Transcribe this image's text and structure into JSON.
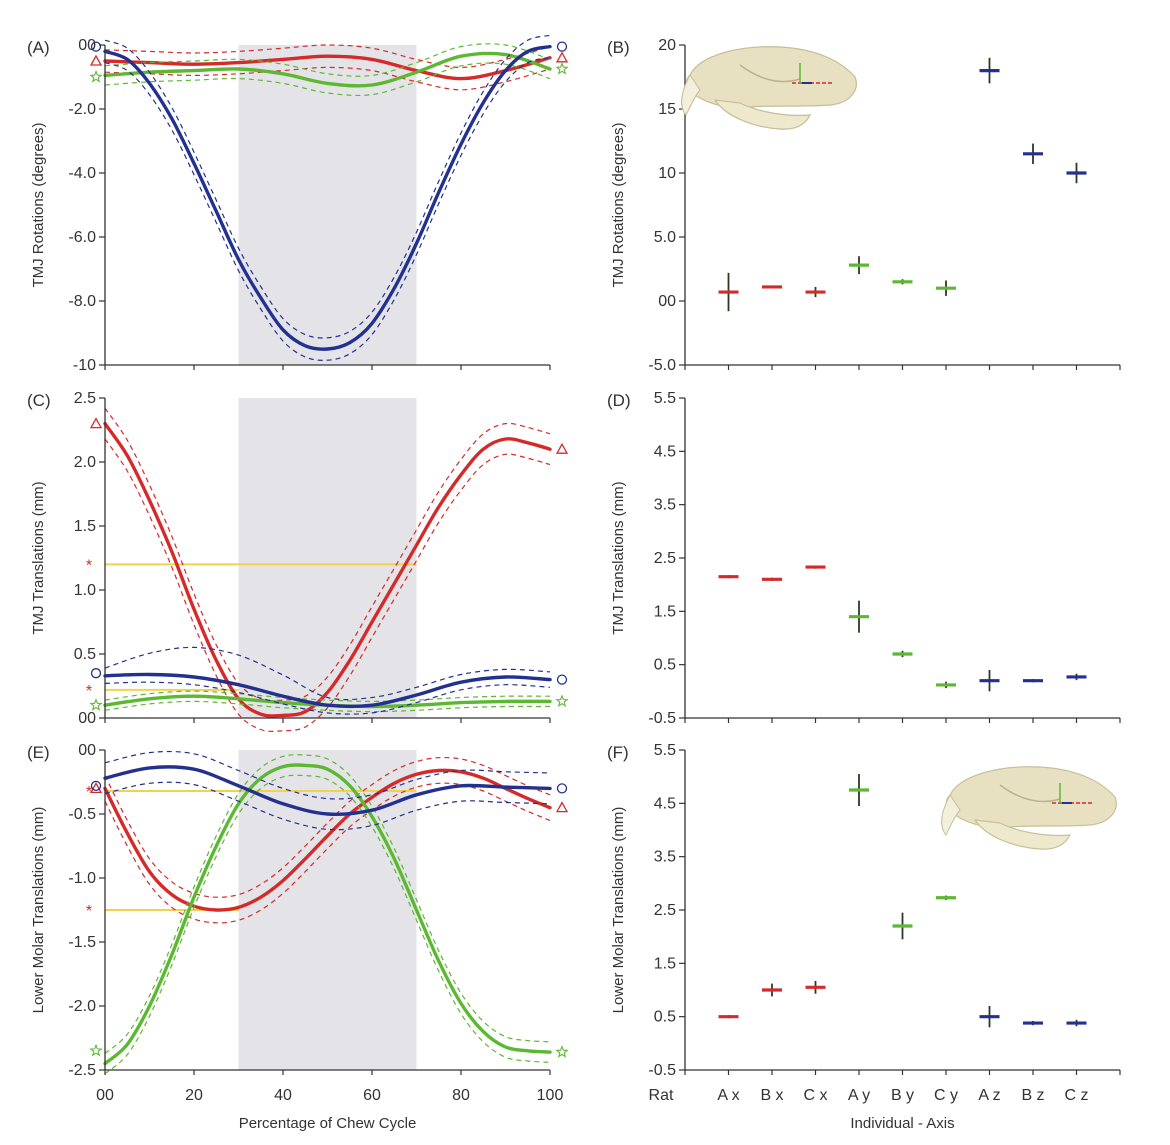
{
  "figure": {
    "bottom_left_xlabel": "Percentage of Chew Cycle",
    "bottom_right_xlabel": "Individual - Axis",
    "bottom_right_first_tick": "Rat",
    "highlight_range": [
      30,
      70
    ]
  },
  "colors": {
    "x": "#d42a2a",
    "y": "#5cb832",
    "z": "#22318f",
    "ref": "#f2d24a",
    "shade": "#e4e4e8"
  },
  "chart_data": [
    {
      "panel": "(A)",
      "type": "line",
      "ylabel": "TMJ Rotations (degrees)",
      "xlim": [
        0,
        100
      ],
      "ylim": [
        -10,
        0
      ],
      "xticks": [
        "00",
        "20",
        "40",
        "60",
        "80",
        "100"
      ],
      "yticks": [
        {
          "v": 0,
          "l": "00"
        },
        {
          "v": -2,
          "l": "-2.0"
        },
        {
          "v": -4,
          "l": "-4.0"
        },
        {
          "v": -6,
          "l": "-6.0"
        },
        {
          "v": -8,
          "l": "-8.0"
        },
        {
          "v": -10,
          "l": "-10"
        }
      ],
      "shade": [
        30,
        70
      ],
      "series": [
        {
          "axis": "x",
          "color": "#d42a2a",
          "marker": "triangle",
          "marker_y": -0.5,
          "x": [
            0,
            10,
            20,
            30,
            40,
            50,
            60,
            70,
            80,
            90,
            100
          ],
          "y": [
            -0.5,
            -0.55,
            -0.6,
            -0.55,
            -0.45,
            -0.35,
            -0.45,
            -0.8,
            -1.05,
            -0.8,
            -0.4
          ],
          "band": 0.35
        },
        {
          "axis": "y",
          "color": "#5cb832",
          "marker": "star",
          "marker_y": -1.0,
          "x": [
            0,
            10,
            20,
            30,
            40,
            50,
            60,
            70,
            80,
            90,
            100
          ],
          "y": [
            -0.95,
            -0.85,
            -0.8,
            -0.75,
            -0.9,
            -1.2,
            -1.25,
            -0.85,
            -0.35,
            -0.3,
            -0.75
          ],
          "band": 0.3
        },
        {
          "axis": "z",
          "color": "#22318f",
          "marker": "circle",
          "marker_y": -0.05,
          "x": [
            0,
            5,
            10,
            15,
            20,
            25,
            30,
            35,
            40,
            45,
            50,
            55,
            60,
            65,
            70,
            75,
            80,
            85,
            90,
            95,
            100
          ],
          "y": [
            -0.2,
            -0.45,
            -1.2,
            -2.3,
            -3.7,
            -5.2,
            -6.7,
            -7.9,
            -8.9,
            -9.4,
            -9.5,
            -9.3,
            -8.7,
            -7.6,
            -6.2,
            -4.6,
            -3.1,
            -1.8,
            -0.8,
            -0.2,
            -0.05
          ],
          "band": 0.35
        }
      ]
    },
    {
      "panel": "(B)",
      "type": "scatter",
      "ylabel": "TMJ Rotations (degrees)",
      "ylim": [
        -5,
        20
      ],
      "yticks": [
        {
          "v": 20,
          "l": "20"
        },
        {
          "v": 15,
          "l": "15"
        },
        {
          "v": 10,
          "l": "10"
        },
        {
          "v": 5,
          "l": "5.0"
        },
        {
          "v": 0,
          "l": "00"
        },
        {
          "v": -5,
          "l": "-5.0"
        }
      ],
      "categories": [
        "A x",
        "B x",
        "C x",
        "A y",
        "B y",
        "C y",
        "A z",
        "B z",
        "C z"
      ],
      "points": [
        {
          "axis": "x",
          "y": 0.7,
          "err": 1.5
        },
        {
          "axis": "x",
          "y": 1.1,
          "err": 0.1
        },
        {
          "axis": "x",
          "y": 0.7,
          "err": 0.4
        },
        {
          "axis": "y",
          "y": 2.8,
          "err": 0.7
        },
        {
          "axis": "y",
          "y": 1.5,
          "err": 0.2
        },
        {
          "axis": "y",
          "y": 1.0,
          "err": 0.6
        },
        {
          "axis": "z",
          "y": 18.0,
          "err": 1.0
        },
        {
          "axis": "z",
          "y": 11.5,
          "err": 0.8
        },
        {
          "axis": "z",
          "y": 10.0,
          "err": 0.8
        }
      ]
    },
    {
      "panel": "(C)",
      "type": "line",
      "ylabel": "TMJ Translations (mm)",
      "xlim": [
        0,
        100
      ],
      "ylim": [
        0,
        2.5
      ],
      "xticks": [
        "00",
        "20",
        "40",
        "60",
        "80",
        "100"
      ],
      "yticks": [
        {
          "v": 2.5,
          "l": "2.5"
        },
        {
          "v": 2.0,
          "l": "2.0"
        },
        {
          "v": 1.5,
          "l": "1.5"
        },
        {
          "v": 1.0,
          "l": "1.0"
        },
        {
          "v": 0.5,
          "l": "0.5"
        },
        {
          "v": 0,
          "l": "00"
        }
      ],
      "shade": [
        30,
        70
      ],
      "ref_lines": [
        {
          "y": 1.2,
          "x": [
            0,
            70
          ]
        },
        {
          "y": 0.22,
          "x": [
            0,
            30
          ]
        }
      ],
      "series": [
        {
          "axis": "x",
          "color": "#d42a2a",
          "marker": "triangle",
          "marker_y": 2.3,
          "x": [
            0,
            5,
            10,
            15,
            20,
            25,
            30,
            35,
            40,
            45,
            50,
            55,
            60,
            65,
            70,
            75,
            80,
            85,
            90,
            95,
            100
          ],
          "y": [
            2.3,
            2.05,
            1.7,
            1.3,
            0.85,
            0.45,
            0.15,
            0.03,
            0.02,
            0.05,
            0.2,
            0.45,
            0.75,
            1.05,
            1.35,
            1.65,
            1.9,
            2.1,
            2.18,
            2.15,
            2.1
          ],
          "band": 0.12
        },
        {
          "axis": "y",
          "color": "#5cb832",
          "marker": "star",
          "marker_y": 0.1,
          "x": [
            0,
            10,
            20,
            30,
            40,
            50,
            60,
            70,
            80,
            90,
            100
          ],
          "y": [
            0.1,
            0.15,
            0.17,
            0.15,
            0.12,
            0.1,
            0.09,
            0.1,
            0.12,
            0.13,
            0.13
          ],
          "band": 0.04
        },
        {
          "axis": "z",
          "color": "#22318f",
          "marker": "circle",
          "marker_y": 0.35,
          "x": [
            0,
            10,
            20,
            30,
            40,
            50,
            60,
            70,
            80,
            90,
            100
          ],
          "y": [
            0.33,
            0.34,
            0.32,
            0.26,
            0.17,
            0.1,
            0.1,
            0.18,
            0.28,
            0.32,
            0.3
          ],
          "band": 0.06,
          "upper_extra": 0.18
        }
      ]
    },
    {
      "panel": "(D)",
      "type": "scatter",
      "ylabel": "TMJ Translations (mm)",
      "ylim": [
        -0.5,
        5.5
      ],
      "yticks": [
        {
          "v": 5.5,
          "l": "5.5"
        },
        {
          "v": 4.5,
          "l": "4.5"
        },
        {
          "v": 3.5,
          "l": "3.5"
        },
        {
          "v": 2.5,
          "l": "2.5"
        },
        {
          "v": 1.5,
          "l": "1.5"
        },
        {
          "v": 0.5,
          "l": "0.5"
        },
        {
          "v": -0.5,
          "l": "-0.5"
        }
      ],
      "categories": [
        "A x",
        "B x",
        "C x",
        "A y",
        "B y",
        "C y",
        "A z",
        "B z",
        "C z"
      ],
      "points": [
        {
          "axis": "x",
          "y": 2.15,
          "err": 0.03
        },
        {
          "axis": "x",
          "y": 2.1,
          "err": 0.03
        },
        {
          "axis": "x",
          "y": 2.33,
          "err": 0.03
        },
        {
          "axis": "y",
          "y": 1.4,
          "err": 0.3
        },
        {
          "axis": "y",
          "y": 0.7,
          "err": 0.06
        },
        {
          "axis": "y",
          "y": 0.12,
          "err": 0.06
        },
        {
          "axis": "z",
          "y": 0.2,
          "err": 0.2
        },
        {
          "axis": "z",
          "y": 0.2,
          "err": 0.03
        },
        {
          "axis": "z",
          "y": 0.27,
          "err": 0.06
        }
      ]
    },
    {
      "panel": "(E)",
      "type": "line",
      "ylabel": "Lower Molar Translations (mm)",
      "xlim": [
        0,
        100
      ],
      "ylim": [
        -2.5,
        0
      ],
      "xticks": [
        "00",
        "20",
        "40",
        "60",
        "80",
        "100"
      ],
      "yticks": [
        {
          "v": 0,
          "l": "00"
        },
        {
          "v": -0.5,
          "l": "-0.5"
        },
        {
          "v": -1.0,
          "l": "-1.0"
        },
        {
          "v": -1.5,
          "l": "-1.5"
        },
        {
          "v": -2.0,
          "l": "-2.0"
        },
        {
          "v": -2.5,
          "l": "-2.5"
        }
      ],
      "shade": [
        30,
        70
      ],
      "ref_lines": [
        {
          "y": -0.32,
          "x": [
            0,
            70
          ]
        },
        {
          "y": -1.25,
          "x": [
            0,
            30
          ]
        }
      ],
      "series": [
        {
          "axis": "x",
          "color": "#d42a2a",
          "marker": "triangle",
          "marker_y": -0.3,
          "x": [
            0,
            5,
            10,
            15,
            20,
            25,
            30,
            35,
            40,
            45,
            50,
            55,
            60,
            65,
            70,
            75,
            80,
            85,
            90,
            95,
            100
          ],
          "y": [
            -0.3,
            -0.65,
            -0.95,
            -1.13,
            -1.22,
            -1.25,
            -1.23,
            -1.15,
            -1.02,
            -0.85,
            -0.67,
            -0.5,
            -0.37,
            -0.26,
            -0.19,
            -0.16,
            -0.17,
            -0.22,
            -0.3,
            -0.38,
            -0.45
          ],
          "band": 0.1
        },
        {
          "axis": "y",
          "color": "#5cb832",
          "marker": "star",
          "marker_y": -2.35,
          "x": [
            0,
            5,
            10,
            15,
            20,
            25,
            30,
            35,
            40,
            45,
            50,
            55,
            60,
            65,
            70,
            75,
            80,
            85,
            90,
            95,
            100
          ],
          "y": [
            -2.45,
            -2.3,
            -2.0,
            -1.6,
            -1.15,
            -0.75,
            -0.42,
            -0.22,
            -0.13,
            -0.12,
            -0.15,
            -0.28,
            -0.52,
            -0.85,
            -1.25,
            -1.65,
            -1.98,
            -2.2,
            -2.32,
            -2.35,
            -2.36
          ],
          "band": 0.08
        },
        {
          "axis": "z",
          "color": "#22318f",
          "marker": "circle",
          "marker_y": -0.28,
          "x": [
            0,
            10,
            20,
            30,
            40,
            50,
            60,
            70,
            80,
            90,
            100
          ],
          "y": [
            -0.22,
            -0.14,
            -0.15,
            -0.28,
            -0.42,
            -0.5,
            -0.47,
            -0.35,
            -0.28,
            -0.29,
            -0.3
          ],
          "band": 0.12
        }
      ]
    },
    {
      "panel": "(F)",
      "type": "scatter",
      "ylabel": "Lower Molar Translations (mm)",
      "ylim": [
        -0.5,
        5.5
      ],
      "yticks": [
        {
          "v": 5.5,
          "l": "5.5"
        },
        {
          "v": 4.5,
          "l": "4.5"
        },
        {
          "v": 3.5,
          "l": "3.5"
        },
        {
          "v": 2.5,
          "l": "2.5"
        },
        {
          "v": 1.5,
          "l": "1.5"
        },
        {
          "v": 0.5,
          "l": "0.5"
        },
        {
          "v": -0.5,
          "l": "-0.5"
        }
      ],
      "categories": [
        "A x",
        "B x",
        "C x",
        "A y",
        "B y",
        "C y",
        "A z",
        "B z",
        "C z"
      ],
      "points": [
        {
          "axis": "x",
          "y": 0.5,
          "err": 0.03
        },
        {
          "axis": "x",
          "y": 1.0,
          "err": 0.12
        },
        {
          "axis": "x",
          "y": 1.05,
          "err": 0.12
        },
        {
          "axis": "y",
          "y": 4.75,
          "err": 0.3
        },
        {
          "axis": "y",
          "y": 2.2,
          "err": 0.25
        },
        {
          "axis": "y",
          "y": 2.73,
          "err": 0.04
        },
        {
          "axis": "z",
          "y": 0.5,
          "err": 0.2
        },
        {
          "axis": "z",
          "y": 0.38,
          "err": 0.04
        },
        {
          "axis": "z",
          "y": 0.38,
          "err": 0.06
        }
      ]
    }
  ]
}
